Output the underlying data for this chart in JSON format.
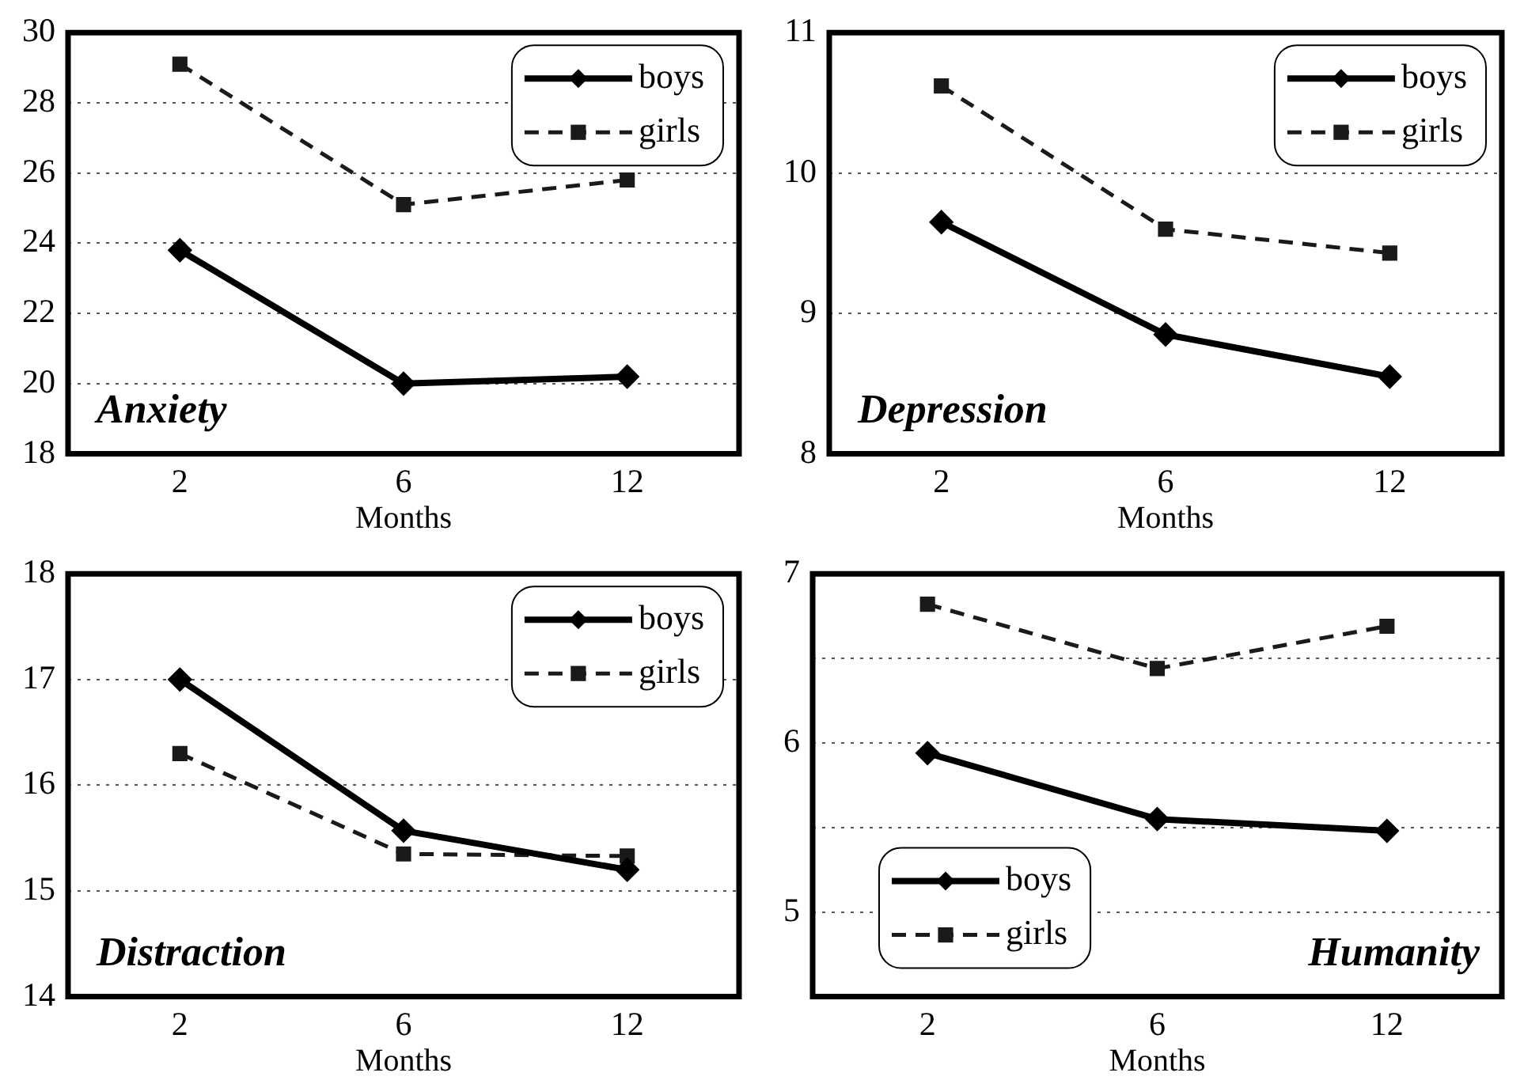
{
  "chart_data": [
    {
      "type": "line",
      "xlabel": "Months",
      "categories": [
        "2",
        "6",
        "12"
      ],
      "annotations": [
        "Anxiety"
      ],
      "ylim": [
        18,
        30
      ],
      "yticks": [
        18,
        20,
        22,
        24,
        26,
        28,
        30
      ],
      "grid": "y",
      "legend": "top right",
      "series": [
        {
          "name": "boys",
          "color": "#000000",
          "marker": "diamond",
          "line_style": "solid",
          "values": [
            23.8,
            20.0,
            20.2
          ]
        },
        {
          "name": "girls",
          "color": "#1a1a1a",
          "marker": "square",
          "line_style": "dashed",
          "values": [
            29.1,
            25.1,
            25.8
          ]
        }
      ]
    },
    {
      "type": "line",
      "xlabel": "Months",
      "categories": [
        "2",
        "6",
        "12"
      ],
      "annotations": [
        "Depression"
      ],
      "ylim": [
        8,
        11
      ],
      "yticks": [
        8,
        9,
        10,
        11
      ],
      "grid": "y",
      "legend": "top right",
      "series": [
        {
          "name": "boys",
          "color": "#000000",
          "marker": "diamond",
          "line_style": "solid",
          "values": [
            9.65,
            8.85,
            8.55
          ]
        },
        {
          "name": "girls",
          "color": "#1a1a1a",
          "marker": "square",
          "line_style": "dashed",
          "values": [
            10.62,
            9.6,
            9.43
          ]
        }
      ]
    },
    {
      "type": "line",
      "xlabel": "Months",
      "categories": [
        "2",
        "6",
        "12"
      ],
      "annotations": [
        "Distraction"
      ],
      "ylim": [
        14,
        18
      ],
      "yticks": [
        14,
        15,
        16,
        17,
        18
      ],
      "grid": "y",
      "legend": "top right",
      "series": [
        {
          "name": "boys",
          "color": "#000000",
          "marker": "diamond",
          "line_style": "solid",
          "values": [
            17.0,
            15.57,
            15.2
          ]
        },
        {
          "name": "girls",
          "color": "#1a1a1a",
          "marker": "square",
          "line_style": "dashed",
          "values": [
            16.3,
            15.35,
            15.33
          ]
        }
      ]
    },
    {
      "type": "line",
      "xlabel": "Months",
      "categories": [
        "2",
        "6",
        "12"
      ],
      "annotations": [
        "Humanity"
      ],
      "ylim": [
        4.5,
        7
      ],
      "yticks": [
        5,
        {
          "value": 5.5,
          "label": null
        },
        6,
        {
          "value": 6.5,
          "label": null
        },
        7
      ],
      "grid": "y",
      "legend": "bottom left",
      "series": [
        {
          "name": "boys",
          "color": "#000000",
          "marker": "diamond",
          "line_style": "solid",
          "values": [
            5.94,
            5.55,
            5.48
          ]
        },
        {
          "name": "girls",
          "color": "#1a1a1a",
          "marker": "square",
          "line_style": "dashed",
          "values": [
            6.82,
            6.44,
            6.69
          ]
        }
      ]
    }
  ]
}
